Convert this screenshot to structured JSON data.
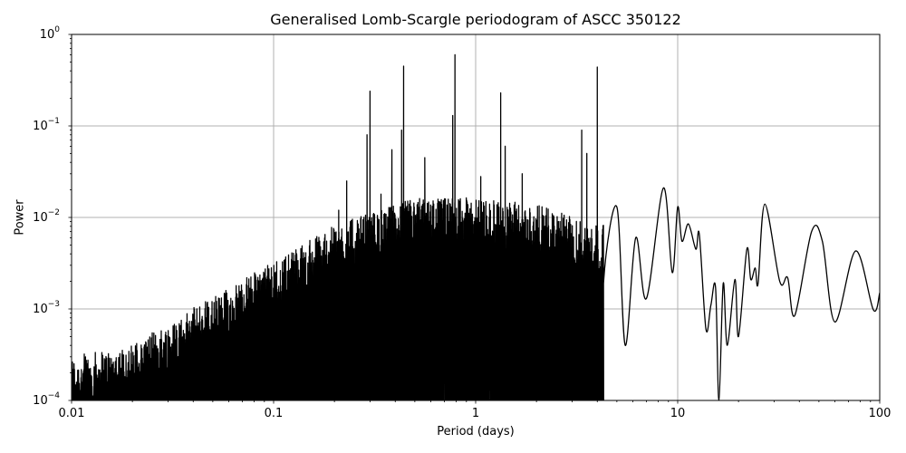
{
  "chart_data": {
    "type": "line",
    "title": "Generalised Lomb-Scargle periodogram of ASCC 350122",
    "xlabel": "Period (days)",
    "ylabel": "Power",
    "xscale": "log",
    "yscale": "log",
    "xlim": [
      0.01,
      100
    ],
    "ylim": [
      0.0001,
      1
    ],
    "grid": true,
    "xticks": [
      {
        "value": 0.01,
        "label": "0.01"
      },
      {
        "value": 0.1,
        "label": "0.1"
      },
      {
        "value": 1,
        "label": "1"
      },
      {
        "value": 10,
        "label": "10"
      },
      {
        "value": 100,
        "label": "100"
      }
    ],
    "yticks": [
      {
        "value": 1,
        "base": "10",
        "exp": "0"
      },
      {
        "value": 0.1,
        "base": "10",
        "exp": "−1"
      },
      {
        "value": 0.01,
        "base": "10",
        "exp": "−2"
      },
      {
        "value": 0.001,
        "base": "10",
        "exp": "−3"
      },
      {
        "value": 0.0001,
        "base": "10",
        "exp": "−4"
      }
    ],
    "line_color": "#000000",
    "grid_color": "#b0b0b0",
    "prominent_peaks": [
      {
        "period": 0.014,
        "power": 0.0002
      },
      {
        "period": 0.023,
        "power": 0.00035
      },
      {
        "period": 0.046,
        "power": 0.0012
      },
      {
        "period": 0.075,
        "power": 0.0018
      },
      {
        "period": 0.13,
        "power": 0.004
      },
      {
        "period": 0.21,
        "power": 0.012
      },
      {
        "period": 0.23,
        "power": 0.025
      },
      {
        "period": 0.26,
        "power": 0.008
      },
      {
        "period": 0.3,
        "power": 0.24
      },
      {
        "period": 0.29,
        "power": 0.08
      },
      {
        "period": 0.34,
        "power": 0.018
      },
      {
        "period": 0.385,
        "power": 0.055
      },
      {
        "period": 0.44,
        "power": 0.45
      },
      {
        "period": 0.43,
        "power": 0.09
      },
      {
        "period": 0.56,
        "power": 0.045
      },
      {
        "period": 0.62,
        "power": 0.014
      },
      {
        "period": 0.77,
        "power": 0.13
      },
      {
        "period": 0.79,
        "power": 0.6
      },
      {
        "period": 0.84,
        "power": 0.016
      },
      {
        "period": 1.06,
        "power": 0.028
      },
      {
        "period": 1.33,
        "power": 0.23
      },
      {
        "period": 1.4,
        "power": 0.06
      },
      {
        "period": 1.7,
        "power": 0.03
      },
      {
        "period": 2.2,
        "power": 0.008
      },
      {
        "period": 3.35,
        "power": 0.09
      },
      {
        "period": 3.55,
        "power": 0.05
      },
      {
        "period": 4.0,
        "power": 0.44
      }
    ],
    "smooth_tail": [
      {
        "period": 4.3,
        "power": 0.002
      },
      {
        "period": 5.0,
        "power": 0.013
      },
      {
        "period": 5.5,
        "power": 0.0004
      },
      {
        "period": 6.2,
        "power": 0.006
      },
      {
        "period": 7.0,
        "power": 0.0013
      },
      {
        "period": 8.5,
        "power": 0.021
      },
      {
        "period": 9.4,
        "power": 0.0025
      },
      {
        "period": 10.0,
        "power": 0.013
      },
      {
        "period": 10.5,
        "power": 0.0055
      },
      {
        "period": 11.3,
        "power": 0.0085
      },
      {
        "period": 12.3,
        "power": 0.0045
      },
      {
        "period": 12.8,
        "power": 0.0065
      },
      {
        "period": 13.8,
        "power": 0.0006
      },
      {
        "period": 14.6,
        "power": 0.0011
      },
      {
        "period": 15.4,
        "power": 0.0017
      },
      {
        "period": 16.0,
        "power": 0.0001
      },
      {
        "period": 16.8,
        "power": 0.0019
      },
      {
        "period": 17.6,
        "power": 0.0004
      },
      {
        "period": 19.2,
        "power": 0.0021
      },
      {
        "period": 20.0,
        "power": 0.0005
      },
      {
        "period": 22.0,
        "power": 0.0045
      },
      {
        "period": 23.0,
        "power": 0.0021
      },
      {
        "period": 24.2,
        "power": 0.0028
      },
      {
        "period": 25.0,
        "power": 0.0019
      },
      {
        "period": 27.0,
        "power": 0.014
      },
      {
        "period": 32.0,
        "power": 0.002
      },
      {
        "period": 35.0,
        "power": 0.0022
      },
      {
        "period": 38.0,
        "power": 0.00085
      },
      {
        "period": 46.0,
        "power": 0.007
      },
      {
        "period": 52.0,
        "power": 0.0055
      },
      {
        "period": 60.0,
        "power": 0.00072
      },
      {
        "period": 76.0,
        "power": 0.0043
      },
      {
        "period": 93.0,
        "power": 0.00098
      },
      {
        "period": 100.0,
        "power": 0.0015
      }
    ],
    "noise_envelope": [
      {
        "period": 0.01,
        "power": 0.00011
      },
      {
        "period": 0.02,
        "power": 0.00015
      },
      {
        "period": 0.05,
        "power": 0.0005
      },
      {
        "period": 0.1,
        "power": 0.0012
      },
      {
        "period": 0.2,
        "power": 0.003
      },
      {
        "period": 0.5,
        "power": 0.006
      },
      {
        "period": 1.0,
        "power": 0.006
      },
      {
        "period": 2.0,
        "power": 0.005
      },
      {
        "period": 4.0,
        "power": 0.003
      }
    ]
  }
}
